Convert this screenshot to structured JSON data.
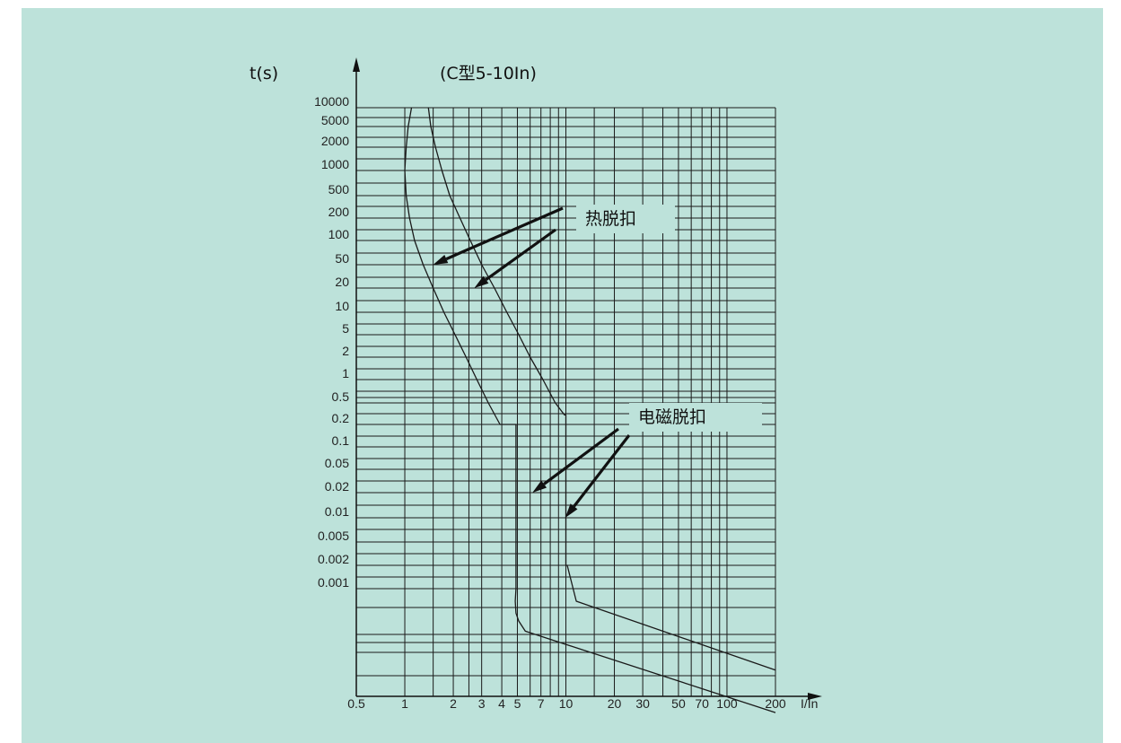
{
  "chart_data": {
    "type": "line",
    "title": "(C型5-10In)",
    "xlabel": "I/In",
    "ylabel": "t(s)",
    "x_scale": "log",
    "x_ticks": [
      "0.5",
      "1",
      "2",
      "3",
      "4",
      "5",
      "7",
      "10",
      "20",
      "30",
      "50",
      "70",
      "100",
      "200"
    ],
    "y_ticks": [
      "10000",
      "5000",
      "2000",
      "1000",
      "500",
      "200",
      "100",
      "50",
      "20",
      "10",
      "5",
      "2",
      "1",
      "0.5",
      "0.2",
      "0.1",
      "0.05",
      "0.02",
      "0.01",
      "0.005",
      "0.002",
      "0.001"
    ],
    "series": [
      {
        "x": [
          1.1,
          1.05,
          1.02,
          1.0,
          1.02,
          1.07,
          1.15,
          1.3,
          1.5,
          1.75,
          2.05,
          2.4,
          2.8,
          3.3,
          3.9,
          4.5,
          4.9,
          4.9,
          4.85,
          4.9,
          5.1,
          5.6,
          200
        ],
        "y": [
          "10000",
          "5000",
          "2000",
          "1000",
          "500",
          "200",
          "100",
          "50",
          "20",
          "10",
          "5",
          "2",
          "1",
          "0.5",
          "0.2",
          "0.2",
          "0.2",
          "0.001",
          "0.0007",
          "0.0005",
          "0.0004",
          "0.0003",
          "0.00003"
        ]
      },
      {
        "x": [
          1.4,
          1.45,
          1.55,
          1.7,
          1.9,
          2.2,
          2.55,
          3.0,
          3.6,
          4.3,
          5.1,
          6.0,
          7.2,
          8.6,
          9.8,
          10.0,
          10.0,
          10.2,
          11.6,
          200
        ],
        "y": [
          "10000",
          "5000",
          "2000",
          "1000",
          "500",
          "200",
          "100",
          "50",
          "20",
          "10",
          "5",
          "2",
          "1",
          "0.5",
          "0.3",
          "0.3",
          "0.002",
          "0.002",
          "0.0007",
          "0.0001"
        ]
      }
    ],
    "annotations": [
      {
        "text": "热脱扣",
        "x": 17,
        "y": "200",
        "arrows_to": [
          {
            "x": 1.5,
            "y": "50"
          },
          {
            "x": 2.7,
            "y": "20"
          }
        ]
      },
      {
        "text": "电磁脱扣",
        "x": 24,
        "y": "0.2",
        "arrows_to": [
          {
            "x": 6.2,
            "y": "0.02"
          },
          {
            "x": 9.9,
            "y": "0.01"
          }
        ]
      }
    ],
    "grid": true,
    "x_range": [
      0.5,
      200
    ],
    "colors": {
      "background": "#bde2da",
      "ink": "#1a1a1a"
    }
  }
}
